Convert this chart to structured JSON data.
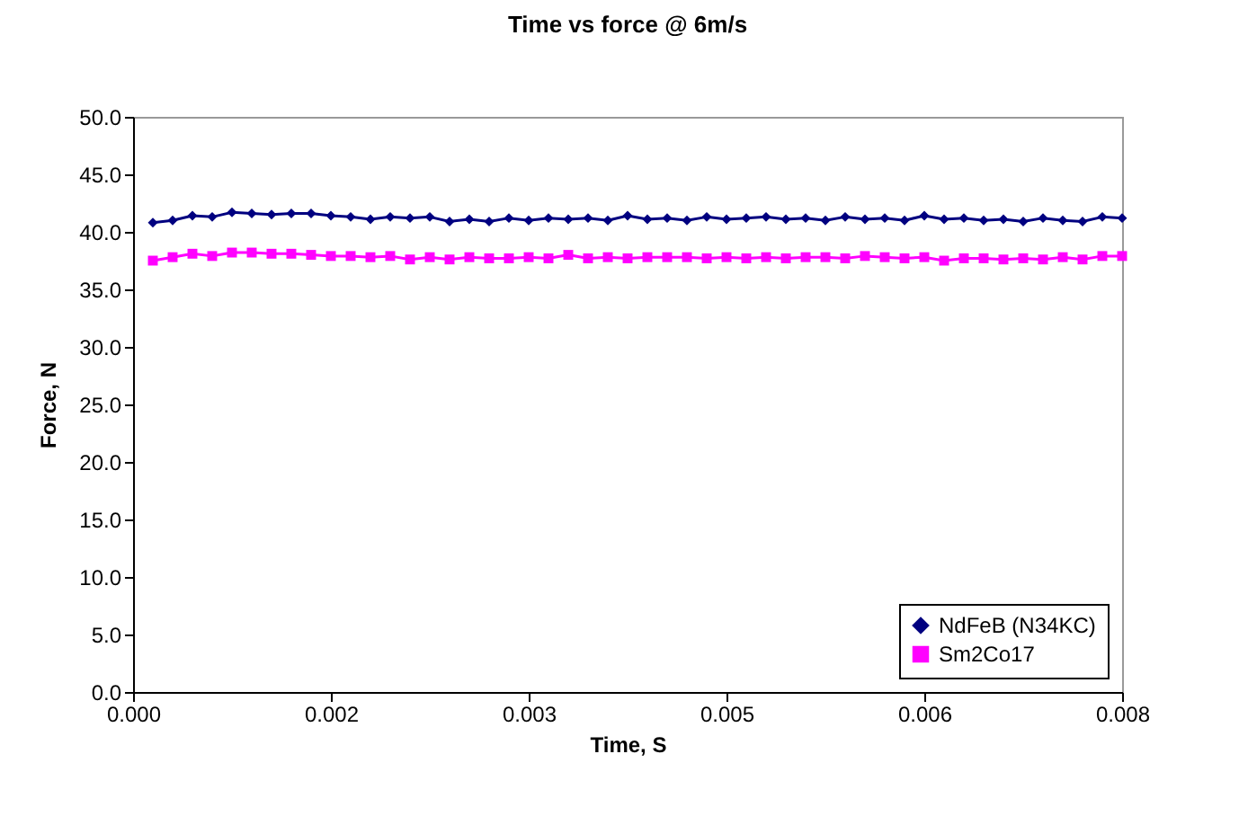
{
  "chart_data": {
    "type": "line",
    "title": "Time vs force @ 6m/s",
    "xlabel": "Time, S",
    "ylabel": "Force, N",
    "x": [
      0.00016,
      0.00032,
      0.00048,
      0.00064,
      0.0008,
      0.00096,
      0.00112,
      0.00128,
      0.00144,
      0.0016,
      0.00176,
      0.00192,
      0.00208,
      0.00224,
      0.0024,
      0.00256,
      0.00272,
      0.00288,
      0.00304,
      0.0032,
      0.00336,
      0.00352,
      0.00368,
      0.00384,
      0.004,
      0.00416,
      0.00432,
      0.00448,
      0.00464,
      0.0048,
      0.00496,
      0.00512,
      0.00528,
      0.00544,
      0.0056,
      0.00576,
      0.00592,
      0.00608,
      0.00624,
      0.0064,
      0.00656,
      0.00672,
      0.00688,
      0.00704,
      0.0072,
      0.00736,
      0.00752,
      0.00768,
      0.00784,
      0.008
    ],
    "series": [
      {
        "name": "NdFeB (N34KC)",
        "color": "#000080",
        "marker": "diamond",
        "values": [
          40.8,
          41.0,
          41.4,
          41.3,
          41.7,
          41.6,
          41.5,
          41.6,
          41.6,
          41.4,
          41.3,
          41.1,
          41.3,
          41.2,
          41.3,
          40.9,
          41.1,
          40.9,
          41.2,
          41.0,
          41.2,
          41.1,
          41.2,
          41.0,
          41.4,
          41.1,
          41.2,
          41.0,
          41.3,
          41.1,
          41.2,
          41.3,
          41.1,
          41.2,
          41.0,
          41.3,
          41.1,
          41.2,
          41.0,
          41.4,
          41.1,
          41.2,
          41.0,
          41.1,
          40.9,
          41.2,
          41.0,
          40.9,
          41.3,
          41.2
        ]
      },
      {
        "name": "Sm2Co17",
        "color": "#ff00ff",
        "marker": "square",
        "values": [
          37.5,
          37.8,
          38.1,
          37.9,
          38.2,
          38.2,
          38.1,
          38.1,
          38.0,
          37.9,
          37.9,
          37.8,
          37.9,
          37.6,
          37.8,
          37.6,
          37.8,
          37.7,
          37.7,
          37.8,
          37.7,
          38.0,
          37.7,
          37.8,
          37.7,
          37.8,
          37.8,
          37.8,
          37.7,
          37.8,
          37.7,
          37.8,
          37.7,
          37.8,
          37.8,
          37.7,
          37.9,
          37.8,
          37.7,
          37.8,
          37.5,
          37.7,
          37.7,
          37.6,
          37.7,
          37.6,
          37.8,
          37.6,
          37.9,
          37.9
        ]
      }
    ],
    "xlim": [
      0,
      0.008
    ],
    "xticks": [
      {
        "value": 0,
        "label": "0.000"
      },
      {
        "value": 0.0016,
        "label": "0.002"
      },
      {
        "value": 0.0032,
        "label": "0.003"
      },
      {
        "value": 0.0048,
        "label": "0.005"
      },
      {
        "value": 0.0064,
        "label": "0.006"
      },
      {
        "value": 0.008,
        "label": "0.008"
      }
    ],
    "ylim": [
      0,
      50
    ],
    "yticks": [
      {
        "value": 0,
        "label": "0.0"
      },
      {
        "value": 5,
        "label": "5.0"
      },
      {
        "value": 10,
        "label": "10.0"
      },
      {
        "value": 15,
        "label": "15.0"
      },
      {
        "value": 20,
        "label": "20.0"
      },
      {
        "value": 25,
        "label": "25.0"
      },
      {
        "value": 30,
        "label": "30.0"
      },
      {
        "value": 35,
        "label": "35.0"
      },
      {
        "value": 40,
        "label": "40.0"
      },
      {
        "value": 45,
        "label": "45.0"
      },
      {
        "value": 50,
        "label": "50.0"
      }
    ],
    "grid": false,
    "legend": "bottom right",
    "line_style": "solid"
  }
}
